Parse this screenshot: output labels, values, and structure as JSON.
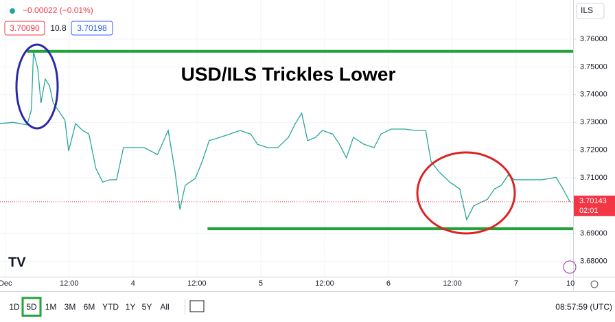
{
  "chart_data": {
    "type": "line",
    "title": "USD/ILS Trickles Lower",
    "change": "−0.00022 (−0.01%)",
    "bid": "3.70090",
    "spread": "10.8",
    "ask": "3.70198",
    "currency": "ILS",
    "last_price": {
      "value": 3.7014,
      "label": "3.70143"
    },
    "countdown": "02:01",
    "clock": "08:57:59 (UTC)",
    "ranges": [
      "1D",
      "5D",
      "1M",
      "3M",
      "6M",
      "YTD",
      "1Y",
      "5Y",
      "All"
    ],
    "selected_range": "5D",
    "color": "#26a69a",
    "levels": [
      {
        "value": 3.7556,
        "from": 4.1
      },
      {
        "value": 3.6917,
        "from": 38.0
      }
    ],
    "level_color": "#22a33a",
    "x": [
      -1.0,
      1.5,
      4.1,
      4.9,
      5.3,
      6.1,
      6.7,
      7.5,
      8.3,
      9.0,
      9.9,
      11.2,
      11.9,
      13.2,
      14.5,
      15.7,
      17.0,
      18.3,
      19.6,
      20.9,
      22.2,
      24.1,
      26.1,
      28.6,
      30.6,
      31.9,
      32.8,
      33.8,
      35.7,
      37.0,
      38.3,
      40.3,
      42.2,
      44.1,
      46.1,
      47.4,
      49.3,
      51.2,
      53.2,
      54.5,
      55.7,
      56.8,
      58.3,
      59.6,
      61.5,
      62.8,
      64.1,
      65.4,
      67.4,
      69.3,
      70.6,
      72.5,
      75.1,
      77.0,
      79.0,
      80.0,
      81.5,
      83.5,
      85.4,
      86.7,
      88.0,
      89.3,
      90.6,
      91.9,
      93.2,
      94.5,
      95.7,
      98.3,
      100.9,
      103.5,
      104.8,
      106.1
    ],
    "values": [
      3.7296,
      3.73,
      3.7291,
      3.7345,
      3.7555,
      3.7494,
      3.737,
      3.7456,
      3.7432,
      3.737,
      3.7345,
      3.7308,
      3.7197,
      3.7296,
      3.7271,
      3.7258,
      3.7135,
      3.7085,
      3.7093,
      3.7093,
      3.7209,
      3.7209,
      3.7209,
      3.7184,
      3.7271,
      3.7122,
      3.6986,
      3.7073,
      3.7098,
      3.7159,
      3.7234,
      3.7246,
      3.7258,
      3.7271,
      3.7258,
      3.7221,
      3.7209,
      3.7209,
      3.7246,
      3.7296,
      3.7333,
      3.7234,
      3.7246,
      3.7271,
      3.7258,
      3.7221,
      3.7172,
      3.7246,
      3.7221,
      3.7209,
      3.7258,
      3.7276,
      3.7276,
      3.7271,
      3.7271,
      3.7159,
      3.7122,
      3.7085,
      3.706,
      3.6949,
      3.6999,
      3.7011,
      3.7023,
      3.706,
      3.7073,
      3.711,
      3.7093,
      3.7093,
      3.7093,
      3.7102,
      3.706,
      3.7014
    ],
    "xlim": [
      -1.0,
      106.7
    ],
    "xticks": [
      {
        "value": 0,
        "label": "Dec"
      },
      {
        "value": 12,
        "label": "12:00"
      },
      {
        "value": 24,
        "label": "4"
      },
      {
        "value": 36,
        "label": "12:00"
      },
      {
        "value": 48,
        "label": "5"
      },
      {
        "value": 60,
        "label": "12:00"
      },
      {
        "value": 72,
        "label": "6"
      },
      {
        "value": 84,
        "label": "12:00"
      },
      {
        "value": 96,
        "label": "7"
      },
      {
        "value": 106.2,
        "label": "10"
      }
    ],
    "ylim": [
      3.6744,
      3.7741
    ],
    "yticks": [
      {
        "value": 3.76,
        "label": "3.76000"
      },
      {
        "value": 3.75,
        "label": "3.75000"
      },
      {
        "value": 3.74,
        "label": "3.74000"
      },
      {
        "value": 3.73,
        "label": "3.73000"
      },
      {
        "value": 3.72,
        "label": "3.72000"
      },
      {
        "value": 3.71,
        "label": "3.71000"
      },
      {
        "value": 3.69,
        "label": "3.69000"
      },
      {
        "value": 3.68,
        "label": "3.68000"
      }
    ],
    "grid": true
  }
}
